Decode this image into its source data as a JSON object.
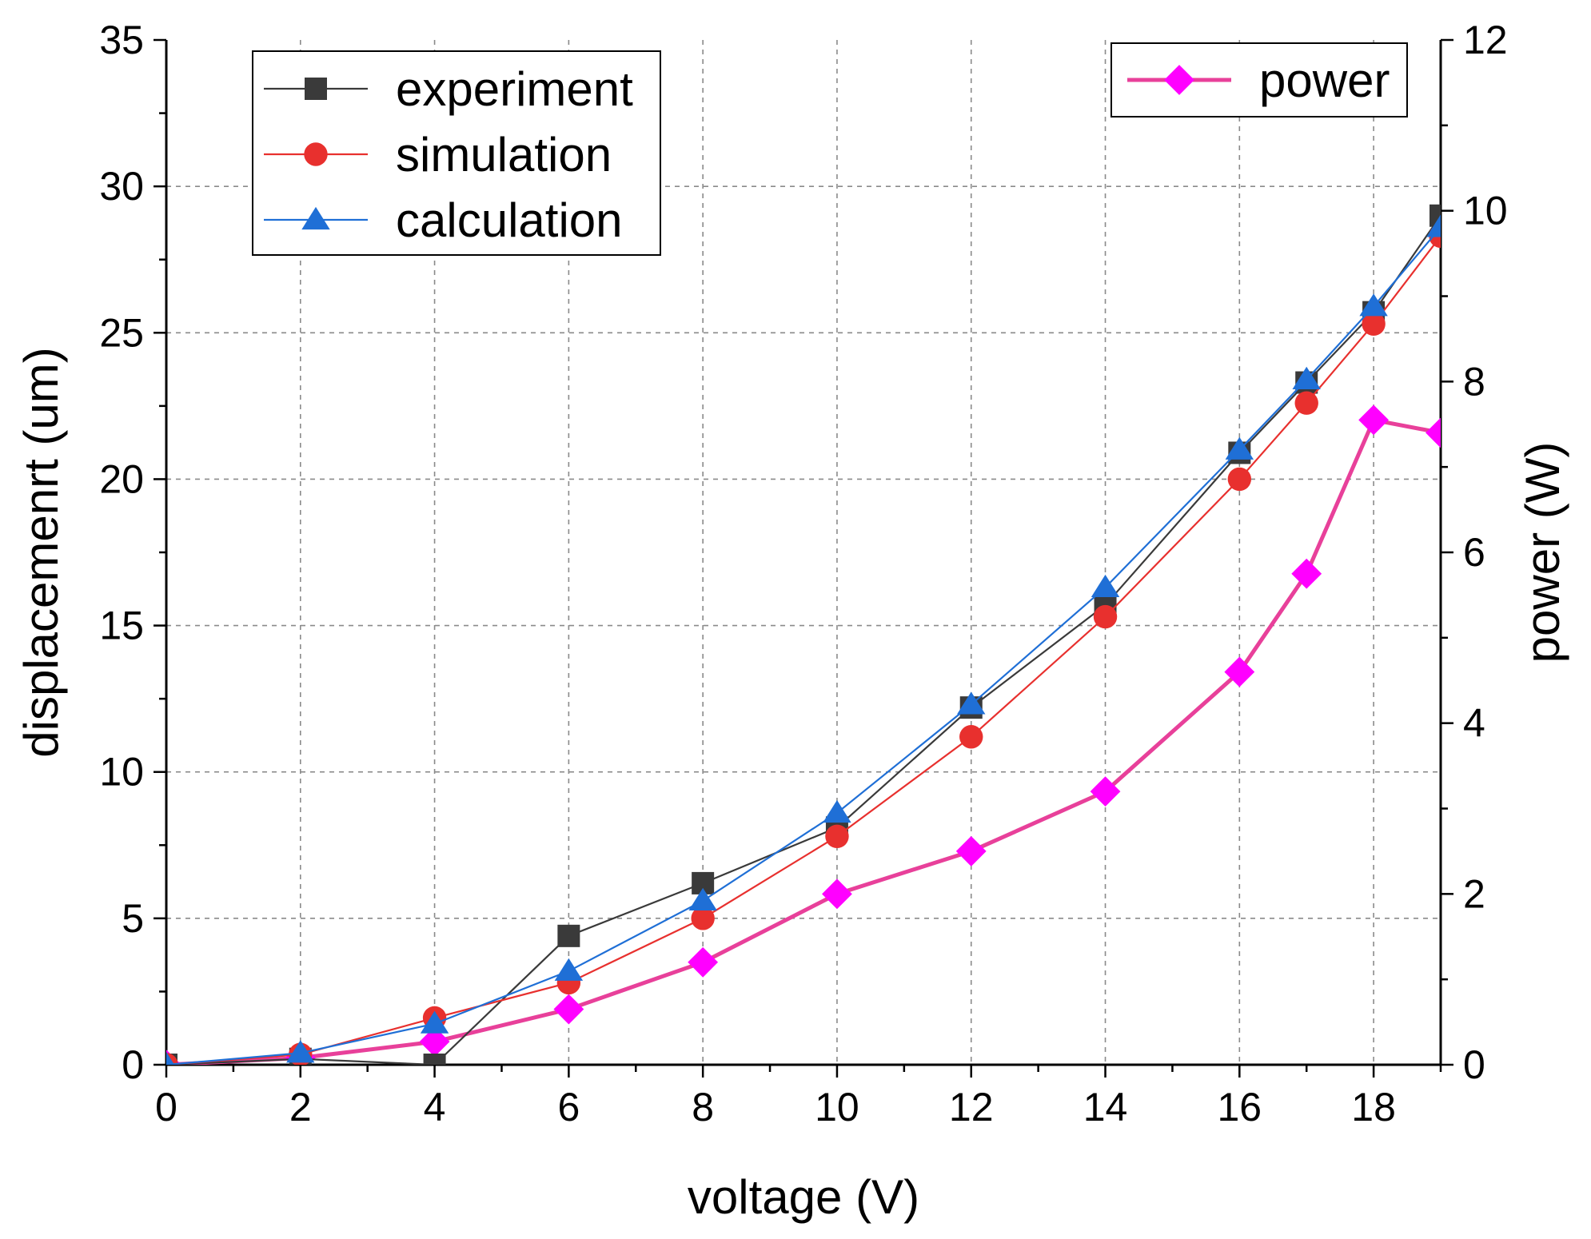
{
  "chart_data": {
    "type": "line",
    "title": "",
    "xlabel": "voltage (V)",
    "ylabel": "displacemenrt (um)",
    "y2label": "power (W)",
    "xlim": [
      0,
      19
    ],
    "ylim": [
      0,
      35
    ],
    "y2lim": [
      0,
      12
    ],
    "x_ticks": [
      0,
      2,
      4,
      6,
      8,
      10,
      12,
      14,
      16,
      18
    ],
    "y_ticks": [
      0,
      5,
      10,
      15,
      20,
      25,
      30,
      35
    ],
    "y2_ticks": [
      0,
      2,
      4,
      6,
      8,
      10,
      12
    ],
    "grid": true,
    "series": [
      {
        "name": "experiment",
        "axis": "left",
        "color": "#3a3a3a",
        "marker": "square",
        "x": [
          0,
          2,
          4,
          6,
          8,
          10,
          12,
          14,
          16,
          17,
          18,
          19
        ],
        "values": [
          0,
          0.2,
          0,
          4.4,
          6.2,
          8.1,
          12.2,
          15.7,
          20.9,
          23.3,
          25.7,
          29.0
        ]
      },
      {
        "name": "simulation",
        "axis": "left",
        "color": "#e8302e",
        "marker": "circle",
        "x": [
          0,
          2,
          4,
          6,
          8,
          10,
          12,
          14,
          16,
          17,
          18,
          19
        ],
        "values": [
          0,
          0.35,
          1.6,
          2.8,
          5.0,
          7.8,
          11.2,
          15.3,
          20.0,
          22.6,
          25.3,
          28.3
        ]
      },
      {
        "name": "calculation",
        "axis": "left",
        "color": "#1f6fd6",
        "marker": "triangle",
        "x": [
          0,
          2,
          4,
          6,
          8,
          10,
          12,
          14,
          16,
          17,
          18,
          19
        ],
        "values": [
          0,
          0.4,
          1.4,
          3.2,
          5.6,
          8.6,
          12.3,
          16.3,
          21.0,
          23.4,
          25.9,
          28.6
        ]
      },
      {
        "name": "power",
        "axis": "right",
        "color": "#ff00ff",
        "line_color": "#e8409a",
        "marker": "diamond",
        "x": [
          0,
          2,
          4,
          6,
          8,
          10,
          12,
          14,
          16,
          17,
          18,
          19
        ],
        "values": [
          0,
          0.08,
          0.27,
          0.65,
          1.2,
          2.0,
          2.5,
          3.2,
          4.6,
          5.75,
          7.55,
          7.4
        ]
      }
    ],
    "legends": [
      {
        "position": "top-left",
        "entries": [
          "experiment",
          "simulation",
          "calculation"
        ]
      },
      {
        "position": "top-right",
        "entries": [
          "power"
        ]
      }
    ]
  }
}
